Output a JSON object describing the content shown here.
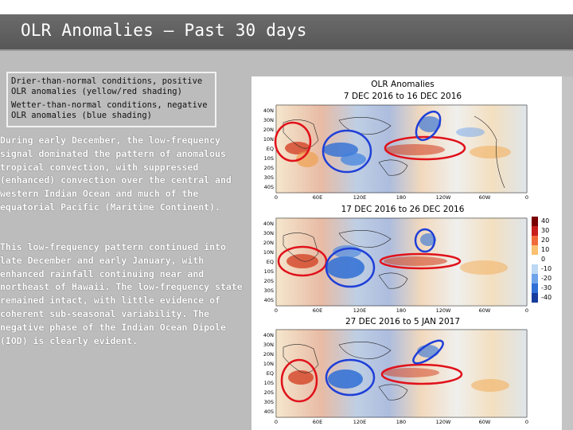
{
  "slide": {
    "title": "OLR Anomalies – Past 30 days",
    "legend": {
      "positive": "Drier-than-normal conditions, positive OLR anomalies (yellow/red shading)",
      "negative": "Wetter-than-normal conditions, negative OLR anomalies (blue shading)"
    },
    "paragraph1": "During early December, the low-frequency signal dominated the pattern of anomalous tropical convection, with suppressed (enhanced) convection over the central and western Indian Ocean and much of the equatorial Pacific (Maritime Continent).",
    "paragraph2": "This low-frequency pattern continued into late December and early January, with enhanced rainfall continuing near and northeast of Hawaii. The low-frequency state remained intact, with little evidence of coherent sub-seasonal variability. The negative phase of the Indian Ocean Dipole (IOD) is clearly evident."
  },
  "maps": {
    "header": "OLR Anomalies",
    "panel1_period": "7 DEC 2016 to 16 DEC 2016",
    "panel2_period": "17 DEC 2016 to 26 DEC 2016",
    "panel3_period": "27 DEC 2016 to 5 JAN 2017",
    "lat_labels": [
      "40N",
      "30N",
      "20N",
      "10N",
      "EQ",
      "10S",
      "20S",
      "30S",
      "40S"
    ],
    "lon_labels_p1": [
      "0",
      "60E",
      "120E",
      "180",
      "120W",
      "60W",
      "0"
    ],
    "lon_labels_p2": [
      "0",
      "60E",
      "120E",
      "180",
      "120W",
      "60W",
      "0"
    ],
    "lon_labels_p3": [
      "0",
      "60E",
      "120E",
      "180",
      "120W",
      "60W",
      "0"
    ],
    "colorbar_values": [
      "40",
      "30",
      "20",
      "10",
      "0",
      "-10",
      "-20",
      "-30",
      "-40"
    ],
    "colors": {
      "wet": "#2f6fd6",
      "dry": "#d23a1c",
      "ellipse_red": "#e0121b",
      "ellipse_blue": "#1f3fd8"
    }
  }
}
